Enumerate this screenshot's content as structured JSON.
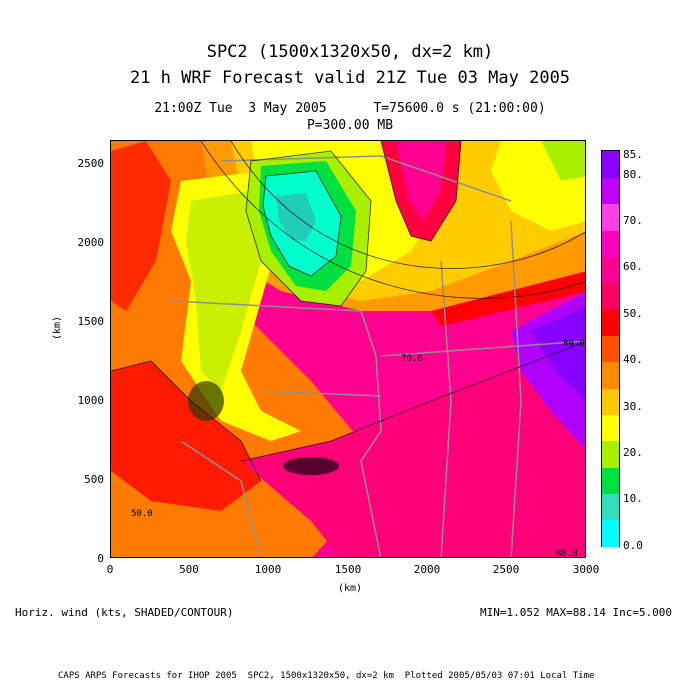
{
  "titles": {
    "line1": "SPC2 (1500x1320x50, dx=2 km)",
    "line2": "21 h WRF Forecast valid 21Z Tue 03 May 2005",
    "line3": "21:00Z Tue  3 May 2005      T=75600.0 s (21:00:00)",
    "line4": "P=300.00 MB"
  },
  "axes": {
    "x_ticks": [
      "0",
      "500",
      "1000",
      "1500",
      "2000",
      "2500",
      "3000"
    ],
    "y_ticks": [
      "0",
      "500",
      "1000",
      "1500",
      "2000",
      "2500"
    ],
    "x_unit": "(km)",
    "y_unit": "(km)"
  },
  "colorbar": {
    "labels": [
      "85.",
      "80.",
      "70.",
      "60.",
      "50.",
      "40.",
      "30.",
      "20.",
      "10.",
      "0.0"
    ],
    "colors": [
      "#00ffff",
      "#33ddbb",
      "#00e040",
      "#a8f000",
      "#ffff00",
      "#ffc800",
      "#ff8c00",
      "#ff5000",
      "#ff0000",
      "#ff0060",
      "#ff0090",
      "#ff00c0",
      "#ff40e8",
      "#c000ff",
      "#8800ff"
    ]
  },
  "map_contour_labels": [
    "70.0",
    "50.0",
    "80.0",
    "80.0"
  ],
  "footer": {
    "left": "Horiz. wind (kts, SHADED/CONTOUR)",
    "right": "MIN=1.052 MAX=88.14 Inc=5.000",
    "credit": "CAPS ARPS Forecasts for IHOP 2005  SPC2, 1500x1320x50, dx=2 km  Plotted 2005/05/03 07:01 Local Time"
  },
  "field_colors": {
    "jet_max": "#ff00b0",
    "jet_core": "#ff0090",
    "orange": "#ff8c00",
    "yellow": "#ffff00",
    "green": "#00e040",
    "cyan": "#00ffff",
    "red": "#ff0000",
    "purple": "#8800ff",
    "state_lines": "#909090"
  }
}
